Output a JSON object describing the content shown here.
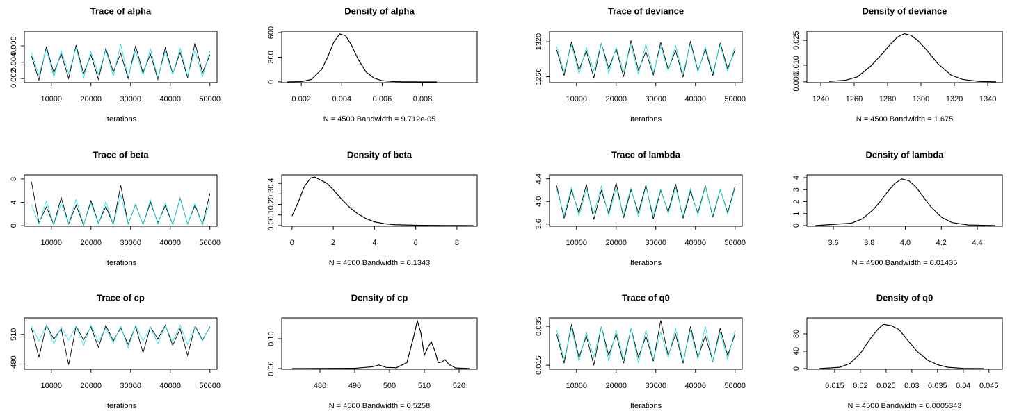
{
  "chart_data": [
    {
      "type": "line",
      "title": "Trace of alpha",
      "xlabel": "Iterations",
      "x": [
        5000,
        6875,
        8750,
        10625,
        12500,
        14375,
        16250,
        18125,
        20000,
        21875,
        23750,
        25625,
        27500,
        29375,
        31250,
        33125,
        35000,
        36875,
        38750,
        40625,
        42500,
        44375,
        46250,
        48125,
        50000
      ],
      "series": [
        {
          "color": "#000000",
          "values": [
            0.0048,
            0.0018,
            0.0059,
            0.0027,
            0.005,
            0.002,
            0.0061,
            0.0026,
            0.0049,
            0.0019,
            0.0057,
            0.0028,
            0.0051,
            0.002,
            0.006,
            0.0027,
            0.005,
            0.0019,
            0.0058,
            0.0026,
            0.0052,
            0.0021,
            0.0064,
            0.0027,
            0.0049
          ]
        },
        {
          "color": "#28e2e5",
          "values": [
            0.0052,
            0.0024,
            0.0056,
            0.0022,
            0.0054,
            0.0026,
            0.0058,
            0.0021,
            0.0053,
            0.0025,
            0.0055,
            0.0023,
            0.0062,
            0.0022,
            0.0054,
            0.0024,
            0.0056,
            0.0021,
            0.0053,
            0.0025,
            0.0057,
            0.0023,
            0.0055,
            0.0022,
            0.0054
          ]
        }
      ],
      "xlim": [
        3200,
        51800
      ],
      "xticks": [
        10000,
        20000,
        30000,
        40000,
        50000
      ],
      "ylim": [
        0.0015,
        0.0078
      ],
      "yticks": [
        0.002,
        0.004,
        0.006
      ]
    },
    {
      "type": "line",
      "title": "Density of alpha",
      "xlabel": "N = 4500   Bandwidth = 9.712e-05",
      "color": "#000000",
      "x": [
        0.0013,
        0.002,
        0.0025,
        0.003,
        0.0033,
        0.0036,
        0.0039,
        0.0042,
        0.0045,
        0.0048,
        0.0052,
        0.0056,
        0.006,
        0.0065,
        0.007,
        0.008,
        0.0087
      ],
      "values": [
        0,
        3,
        30,
        150,
        300,
        480,
        585,
        560,
        440,
        280,
        120,
        45,
        15,
        4,
        1,
        0,
        0
      ],
      "xlim": [
        0.00103,
        0.0107
      ],
      "xticks": [
        0.002,
        0.004,
        0.006,
        0.008
      ],
      "ylim": [
        -9,
        617
      ],
      "yticks": [
        0,
        300,
        600
      ]
    },
    {
      "type": "line",
      "title": "Trace of deviance",
      "xlabel": "Iterations",
      "x": [
        5000,
        6875,
        8750,
        10625,
        12500,
        14375,
        16250,
        18125,
        20000,
        21875,
        23750,
        25625,
        27500,
        29375,
        31250,
        33125,
        35000,
        36875,
        38750,
        40625,
        42500,
        44375,
        46250,
        48125,
        50000
      ],
      "series": [
        {
          "color": "#000000",
          "values": [
            1306,
            1262,
            1320,
            1272,
            1304,
            1258,
            1318,
            1274,
            1308,
            1260,
            1322,
            1271,
            1303,
            1263,
            1319,
            1273,
            1305,
            1259,
            1321,
            1270,
            1307,
            1262,
            1318,
            1274,
            1306
          ]
        },
        {
          "color": "#28e2e5",
          "values": [
            1312,
            1268,
            1315,
            1265,
            1310,
            1270,
            1318,
            1266,
            1311,
            1269,
            1314,
            1264,
            1316,
            1267,
            1312,
            1270,
            1313,
            1265,
            1317,
            1268,
            1311,
            1266,
            1315,
            1269,
            1312
          ]
        }
      ],
      "xlim": [
        3200,
        51800
      ],
      "xticks": [
        10000,
        20000,
        30000,
        40000,
        50000
      ],
      "ylim": [
        1250,
        1338
      ],
      "yticks": [
        1260,
        1320
      ]
    },
    {
      "type": "line",
      "title": "Density of deviance",
      "xlabel": "N = 4500   Bandwidth = 1.675",
      "color": "#000000",
      "x": [
        1245,
        1255,
        1262,
        1270,
        1276,
        1282,
        1286,
        1290,
        1294,
        1298,
        1304,
        1310,
        1318,
        1325,
        1335,
        1345
      ],
      "values": [
        0.0002,
        0.001,
        0.003,
        0.0095,
        0.016,
        0.023,
        0.027,
        0.029,
        0.028,
        0.025,
        0.0185,
        0.011,
        0.004,
        0.0014,
        0.0002,
        0
      ],
      "xlim": [
        1231.7,
        1348.7
      ],
      "xticks": [
        1240,
        1260,
        1280,
        1300,
        1320,
        1340
      ],
      "ylim": [
        -0.0005,
        0.0305
      ],
      "yticks": [
        {
          "value": 0,
          "label": "0.000"
        },
        {
          "value": 0.01,
          "label": "0.010"
        },
        {
          "value": 0.025,
          "label": "0.025"
        }
      ]
    },
    {
      "type": "line",
      "title": "Trace of beta",
      "xlabel": "Iterations",
      "x": [
        5000,
        6875,
        8750,
        10625,
        12500,
        14375,
        16250,
        18125,
        20000,
        21875,
        23750,
        25625,
        27500,
        29375,
        31250,
        33125,
        35000,
        36875,
        38750,
        40625,
        42500,
        44375,
        46250,
        48125,
        50000
      ],
      "series": [
        {
          "color": "#000000",
          "values": [
            7.5,
            0.5,
            3.2,
            0.2,
            4.8,
            0.3,
            3.5,
            0.1,
            4.3,
            0.4,
            3.3,
            0.2,
            6.9,
            0.3,
            3.6,
            0.2,
            4.0,
            0.5,
            3.4,
            0.2,
            4.7,
            0.3,
            3.5,
            0.2,
            5.5
          ]
        },
        {
          "color": "#28e2e5",
          "values": [
            3.6,
            0.3,
            4.2,
            0.2,
            3.8,
            0.4,
            4.5,
            0.2,
            3.9,
            0.3,
            4.1,
            0.2,
            5.2,
            0.3,
            3.7,
            0.2,
            4.4,
            0.3,
            3.9,
            0.2,
            4.6,
            0.3,
            3.8,
            0.2,
            4.0
          ]
        }
      ],
      "xlim": [
        3200,
        51800
      ],
      "xticks": [
        10000,
        20000,
        30000,
        40000,
        50000
      ],
      "ylim": [
        -0.1,
        8.7
      ],
      "yticks": [
        0,
        4,
        8
      ]
    },
    {
      "type": "line",
      "title": "Density of beta",
      "xlabel": "N = 4500   Bandwidth = 0.1343",
      "color": "#000000",
      "x": [
        0,
        0.3,
        0.6,
        0.9,
        1.1,
        1.4,
        1.7,
        2.0,
        2.4,
        2.8,
        3.2,
        3.6,
        4.0,
        4.5,
        5.0,
        6.0,
        7.0,
        8.0,
        8.8
      ],
      "values": [
        0.09,
        0.22,
        0.37,
        0.45,
        0.46,
        0.43,
        0.4,
        0.34,
        0.25,
        0.17,
        0.11,
        0.065,
        0.035,
        0.017,
        0.008,
        0.003,
        0.001,
        0.0005,
        0
      ],
      "xlim": [
        -0.5,
        8.98
      ],
      "xticks": [
        0,
        2,
        4,
        6,
        8
      ],
      "ylim": [
        -0.007,
        0.48
      ],
      "yticks": [
        {
          "value": 0,
          "label": "0.0"
        },
        0.1,
        0.2,
        0.3,
        0.4
      ]
    },
    {
      "type": "line",
      "title": "Trace of lambda",
      "xlabel": "Iterations",
      "x": [
        5000,
        6875,
        8750,
        10625,
        12500,
        14375,
        16250,
        18125,
        20000,
        21875,
        23750,
        25625,
        27500,
        29375,
        31250,
        33125,
        35000,
        36875,
        38750,
        40625,
        42500,
        44375,
        46250,
        48125,
        50000
      ],
      "series": [
        {
          "color": "#000000",
          "values": [
            4.28,
            3.7,
            4.2,
            3.8,
            4.3,
            3.68,
            4.19,
            3.79,
            4.33,
            3.71,
            4.21,
            3.8,
            4.29,
            3.69,
            4.2,
            3.81,
            4.31,
            3.7,
            4.18,
            3.79,
            4.28,
            3.72,
            4.21,
            3.8,
            4.27
          ]
        },
        {
          "color": "#28e2e5",
          "values": [
            4.22,
            3.76,
            4.25,
            3.74,
            4.21,
            3.78,
            4.27,
            3.75,
            4.23,
            3.77,
            4.24,
            3.73,
            4.26,
            3.76,
            4.22,
            3.78,
            4.25,
            3.74,
            4.23,
            3.76,
            4.26,
            3.75,
            4.22,
            3.77,
            4.24
          ]
        }
      ],
      "xlim": [
        3200,
        51800
      ],
      "xticks": [
        10000,
        20000,
        30000,
        40000,
        50000
      ],
      "ylim": [
        3.56,
        4.47
      ],
      "yticks": [
        3.6,
        {
          "value": 4,
          "label": "4.0"
        },
        4.4
      ]
    },
    {
      "type": "line",
      "title": "Density of lambda",
      "xlabel": "N = 4500   Bandwidth = 0.01435",
      "color": "#000000",
      "x": [
        3.5,
        3.7,
        3.76,
        3.82,
        3.86,
        3.9,
        3.94,
        3.98,
        4.02,
        4.06,
        4.1,
        4.14,
        4.2,
        4.26,
        4.35,
        4.5
      ],
      "values": [
        0,
        0.2,
        0.55,
        1.3,
        2.0,
        2.8,
        3.5,
        3.9,
        3.75,
        3.2,
        2.4,
        1.6,
        0.7,
        0.25,
        0.05,
        0
      ],
      "xlim": [
        3.453,
        4.539
      ],
      "xticks": [
        3.6,
        3.8,
        {
          "value": 4,
          "label": "4.0"
        },
        4.2,
        4.4
      ],
      "ylim": [
        -0.06,
        4.235
      ],
      "yticks": [
        0,
        1,
        2,
        3,
        4
      ]
    },
    {
      "type": "line",
      "title": "Trace of cp",
      "xlabel": "Iterations",
      "x": [
        5000,
        6875,
        8750,
        10625,
        12500,
        14375,
        16250,
        18125,
        20000,
        21875,
        23750,
        25625,
        27500,
        29375,
        31250,
        33125,
        35000,
        36875,
        38750,
        40625,
        42500,
        44375,
        46250,
        48125,
        50000
      ],
      "series": [
        {
          "color": "#000000",
          "values": [
            517,
            485,
            520,
            505,
            516,
            477,
            519,
            504,
            518,
            496,
            520,
            503,
            517,
            499,
            519,
            490,
            518,
            505,
            520,
            498,
            516,
            487,
            519,
            504,
            518
          ]
        },
        {
          "color": "#28e2e5",
          "values": [
            519,
            503,
            520,
            500,
            518,
            504,
            519,
            498,
            520,
            502,
            517,
            501,
            519,
            495,
            520,
            503,
            518,
            500,
            519,
            502,
            520,
            499,
            518,
            503,
            519
          ]
        }
      ],
      "xlim": [
        3200,
        51800
      ],
      "xticks": [
        10000,
        20000,
        30000,
        40000,
        50000
      ],
      "ylim": [
        472,
        528
      ],
      "yticks": [
        480,
        510
      ]
    },
    {
      "type": "line",
      "title": "Density of cp",
      "xlabel": "N = 4500   Bandwidth = 0.5258",
      "color": "#000000",
      "x": [
        472,
        490,
        495,
        497,
        499,
        502,
        505,
        507,
        508,
        509,
        510,
        511,
        512,
        513,
        514,
        515,
        516,
        517,
        519,
        523
      ],
      "values": [
        0,
        0.001,
        0.006,
        0.012,
        0.004,
        0.003,
        0.02,
        0.11,
        0.16,
        0.12,
        0.045,
        0.07,
        0.09,
        0.06,
        0.02,
        0.022,
        0.03,
        0.015,
        0.002,
        0
      ],
      "xlim": [
        469,
        525.2
      ],
      "xticks": [
        480,
        490,
        500,
        510,
        520
      ],
      "ylim": [
        -0.0023,
        0.17
      ],
      "yticks": [
        {
          "value": 0,
          "label": "0.00"
        },
        {
          "value": 0.1,
          "label": "0.10"
        }
      ]
    },
    {
      "type": "line",
      "title": "Trace of q0",
      "xlabel": "Iterations",
      "x": [
        5000,
        6875,
        8750,
        10625,
        12500,
        14375,
        16250,
        18125,
        20000,
        21875,
        23750,
        25625,
        27500,
        29375,
        31250,
        33125,
        35000,
        36875,
        38750,
        40625,
        42500,
        44375,
        46250,
        48125,
        50000
      ],
      "series": [
        {
          "color": "#000000",
          "values": [
            0.031,
            0.016,
            0.036,
            0.019,
            0.03,
            0.015,
            0.035,
            0.02,
            0.031,
            0.016,
            0.034,
            0.019,
            0.03,
            0.017,
            0.038,
            0.02,
            0.031,
            0.016,
            0.035,
            0.019,
            0.03,
            0.017,
            0.034,
            0.02,
            0.031
          ]
        },
        {
          "color": "#28e2e5",
          "values": [
            0.033,
            0.018,
            0.034,
            0.017,
            0.032,
            0.019,
            0.035,
            0.017,
            0.033,
            0.018,
            0.034,
            0.016,
            0.033,
            0.018,
            0.032,
            0.019,
            0.034,
            0.017,
            0.033,
            0.018,
            0.035,
            0.017,
            0.032,
            0.018,
            0.033
          ]
        }
      ],
      "xlim": [
        3200,
        51800
      ],
      "xticks": [
        10000,
        20000,
        30000,
        40000,
        50000
      ],
      "ylim": [
        0.0129,
        0.0393
      ],
      "yticks": [
        0.015,
        0.035
      ]
    },
    {
      "type": "line",
      "title": "Density of q0",
      "xlabel": "N = 4500   Bandwidth = 0.0005343",
      "color": "#000000",
      "x": [
        0.012,
        0.016,
        0.018,
        0.02,
        0.022,
        0.0235,
        0.0245,
        0.026,
        0.0275,
        0.029,
        0.031,
        0.033,
        0.035,
        0.037,
        0.04,
        0.044
      ],
      "values": [
        0,
        3,
        12,
        35,
        70,
        92,
        102,
        99,
        90,
        68,
        40,
        20,
        9,
        3,
        0.5,
        0
      ],
      "xlim": [
        0.0096,
        0.0476
      ],
      "xticks": [
        0.015,
        0.02,
        0.025,
        0.03,
        0.035,
        0.04,
        0.045
      ],
      "ylim": [
        -1.6,
        116.8
      ],
      "yticks": [
        0,
        40,
        80
      ]
    }
  ]
}
